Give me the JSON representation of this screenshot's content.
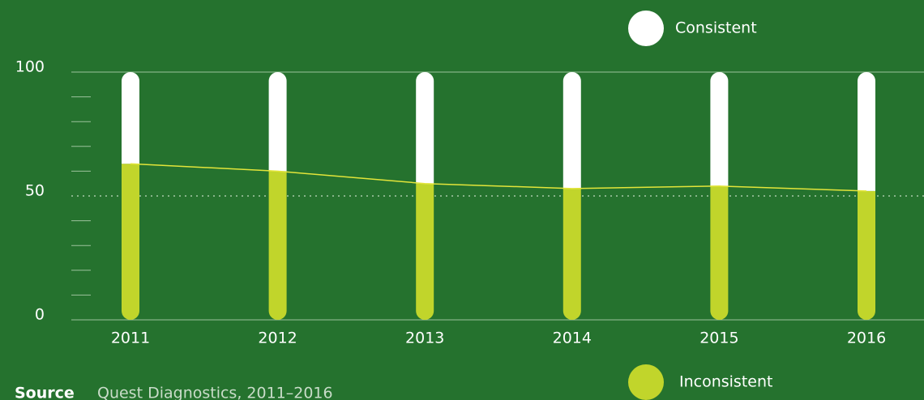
{
  "chart_data": {
    "type": "stacked_bar",
    "categories": [
      "2011",
      "2012",
      "2013",
      "2014",
      "2015",
      "2016"
    ],
    "series": [
      {
        "name": "Inconsistent",
        "color": "#c1d52b",
        "values": [
          63,
          60,
          55,
          53,
          54,
          52
        ]
      },
      {
        "name": "Consistent",
        "color": "#ffffff",
        "values": [
          37,
          40,
          45,
          47,
          46,
          48
        ]
      }
    ],
    "line_color": "#e3e53a",
    "ylim": [
      0,
      100
    ],
    "yticks": [
      0,
      50,
      100
    ],
    "minor_yticks": [
      10,
      20,
      30,
      40,
      60,
      70,
      80,
      90
    ],
    "source_label": "Source",
    "source": "Quest Diagnostics, 2011–2016"
  }
}
